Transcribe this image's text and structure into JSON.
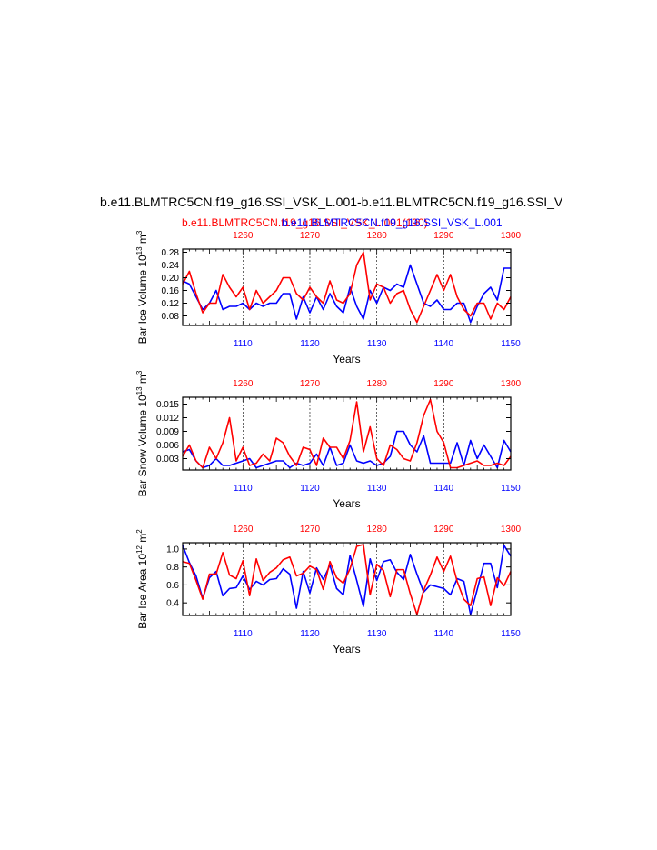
{
  "title": {
    "main": "b.e11.BLMTRC5CN.f19_g16.SSI_VSK_L.001-b.e11.BLMTRC5CN.f19_g16.SSI_V",
    "legend_red": "b.e11.BLMTRC5CN.f19_g16.SSI_VSK_L.001",
    "legend_red_suffix": "(190)",
    "legend_blue": "b.e11.BLMTRC5CN.f19_g16.SSI_VSK_L.001",
    "red_color": "#ff0000",
    "blue_color": "#0000ff"
  },
  "chart_data": [
    {
      "type": "line",
      "ylabel_main": "Bar Ice Volume 10",
      "ylabel_exp": "13",
      "ylabel_unit": " m",
      "ylabel_unit_exp": "3",
      "xlabel": "Years",
      "x_bottom_ticks": [
        "1110",
        "1120",
        "1130",
        "1140",
        "1150"
      ],
      "x_top_ticks": [
        "1260",
        "1270",
        "1280",
        "1290",
        "1300"
      ],
      "yticks": [
        "0.28",
        "0.24",
        "0.20",
        "0.16",
        "0.12",
        "0.08"
      ],
      "ylim": [
        0.05,
        0.29
      ],
      "x_bottom": [
        1101,
        1150
      ],
      "x_top_range": [
        1251,
        1300
      ],
      "series": [
        {
          "color": "#0000ff",
          "values": [
            0.19,
            0.18,
            0.14,
            0.1,
            0.12,
            0.16,
            0.1,
            0.11,
            0.11,
            0.12,
            0.1,
            0.12,
            0.11,
            0.12,
            0.12,
            0.15,
            0.15,
            0.07,
            0.14,
            0.09,
            0.14,
            0.1,
            0.15,
            0.11,
            0.09,
            0.17,
            0.11,
            0.07,
            0.16,
            0.12,
            0.17,
            0.16,
            0.18,
            0.17,
            0.24,
            0.18,
            0.12,
            0.11,
            0.13,
            0.1,
            0.1,
            0.12,
            0.12,
            0.06,
            0.11,
            0.15,
            0.17,
            0.13,
            0.23,
            0.23
          ]
        },
        {
          "color": "#ff0000",
          "values": [
            0.18,
            0.22,
            0.15,
            0.09,
            0.12,
            0.12,
            0.21,
            0.17,
            0.14,
            0.17,
            0.1,
            0.16,
            0.12,
            0.14,
            0.16,
            0.2,
            0.2,
            0.15,
            0.13,
            0.17,
            0.14,
            0.12,
            0.19,
            0.13,
            0.12,
            0.15,
            0.24,
            0.28,
            0.13,
            0.18,
            0.17,
            0.12,
            0.15,
            0.16,
            0.1,
            0.06,
            0.11,
            0.16,
            0.21,
            0.16,
            0.21,
            0.14,
            0.1,
            0.08,
            0.12,
            0.12,
            0.07,
            0.12,
            0.1,
            0.14
          ]
        }
      ]
    },
    {
      "type": "line",
      "ylabel_main": "Bar Snow Volume 10",
      "ylabel_exp": "13",
      "ylabel_unit": " m",
      "ylabel_unit_exp": "3",
      "xlabel": "Years",
      "x_bottom_ticks": [
        "1110",
        "1120",
        "1130",
        "1140",
        "1150"
      ],
      "x_top_ticks": [
        "1260",
        "1270",
        "1280",
        "1290",
        "1300"
      ],
      "yticks": [
        "0.015",
        "0.012",
        "0.009",
        "0.006",
        "0.003"
      ],
      "ylim": [
        0.0005,
        0.0165
      ],
      "x_bottom": [
        1101,
        1150
      ],
      "x_top_range": [
        1251,
        1300
      ],
      "series": [
        {
          "color": "#0000ff",
          "values": [
            0.0045,
            0.005,
            0.0025,
            0.001,
            0.0015,
            0.003,
            0.0015,
            0.0015,
            0.002,
            0.0025,
            0.003,
            0.001,
            0.0015,
            0.002,
            0.0025,
            0.0025,
            0.001,
            0.002,
            0.0015,
            0.002,
            0.004,
            0.0015,
            0.0055,
            0.0015,
            0.002,
            0.006,
            0.0025,
            0.002,
            0.0025,
            0.0015,
            0.002,
            0.0035,
            0.009,
            0.009,
            0.006,
            0.0045,
            0.008,
            0.002,
            0.002,
            0.002,
            0.002,
            0.0065,
            0.0015,
            0.007,
            0.003,
            0.006,
            0.0035,
            0.001,
            0.007,
            0.0045
          ]
        },
        {
          "color": "#ff0000",
          "values": [
            0.0035,
            0.006,
            0.0025,
            0.001,
            0.0055,
            0.003,
            0.0065,
            0.012,
            0.0025,
            0.0055,
            0.0015,
            0.002,
            0.004,
            0.0025,
            0.0075,
            0.0065,
            0.0035,
            0.0015,
            0.0055,
            0.005,
            0.0015,
            0.0075,
            0.0055,
            0.0055,
            0.003,
            0.007,
            0.0155,
            0.0045,
            0.01,
            0.003,
            0.0015,
            0.006,
            0.005,
            0.003,
            0.0025,
            0.0065,
            0.0125,
            0.016,
            0.009,
            0.0065,
            0.001,
            0.001,
            0.0015,
            0.002,
            0.0025,
            0.0015,
            0.0015,
            0.002,
            0.0015,
            0.0035
          ]
        }
      ]
    },
    {
      "type": "line",
      "ylabel_main": "Bar Ice Area 10",
      "ylabel_exp": "12",
      "ylabel_unit": " m",
      "ylabel_unit_exp": "2",
      "xlabel": "Years",
      "x_bottom_ticks": [
        "1110",
        "1120",
        "1130",
        "1140",
        "1150"
      ],
      "x_top_ticks": [
        "1260",
        "1270",
        "1280",
        "1290",
        "1300"
      ],
      "yticks": [
        "1.0",
        "0.8",
        "0.6",
        "0.4"
      ],
      "ylim": [
        0.26,
        1.07
      ],
      "x_bottom": [
        1101,
        1150
      ],
      "x_top_range": [
        1251,
        1300
      ],
      "series": [
        {
          "color": "#0000ff",
          "values": [
            1.04,
            0.85,
            0.7,
            0.45,
            0.68,
            0.75,
            0.48,
            0.56,
            0.57,
            0.7,
            0.55,
            0.64,
            0.6,
            0.66,
            0.67,
            0.78,
            0.72,
            0.34,
            0.75,
            0.51,
            0.79,
            0.66,
            0.82,
            0.56,
            0.49,
            0.93,
            0.65,
            0.36,
            0.89,
            0.65,
            0.86,
            0.88,
            0.74,
            0.66,
            0.94,
            0.72,
            0.52,
            0.6,
            0.58,
            0.56,
            0.49,
            0.67,
            0.64,
            0.27,
            0.55,
            0.84,
            0.84,
            0.57,
            1.04,
            0.92
          ]
        },
        {
          "color": "#ff0000",
          "values": [
            0.86,
            0.84,
            0.65,
            0.44,
            0.72,
            0.72,
            0.96,
            0.71,
            0.67,
            0.87,
            0.48,
            0.89,
            0.65,
            0.74,
            0.79,
            0.88,
            0.91,
            0.7,
            0.73,
            0.81,
            0.77,
            0.55,
            0.86,
            0.68,
            0.62,
            0.78,
            1.03,
            1.05,
            0.49,
            0.83,
            0.76,
            0.47,
            0.77,
            0.77,
            0.5,
            0.27,
            0.54,
            0.71,
            0.91,
            0.75,
            0.92,
            0.64,
            0.44,
            0.37,
            0.67,
            0.69,
            0.37,
            0.68,
            0.59,
            0.75
          ]
        }
      ]
    }
  ]
}
